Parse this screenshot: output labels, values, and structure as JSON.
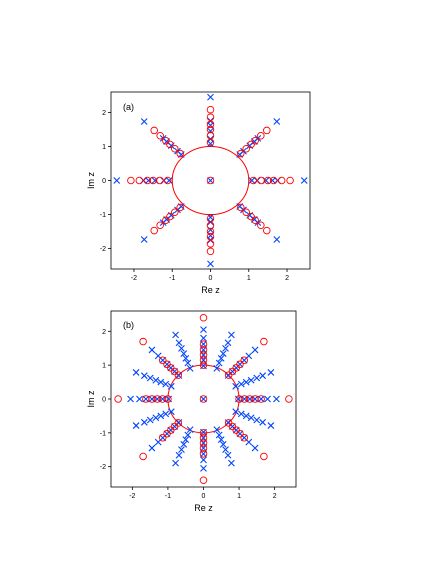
{
  "chart_data": [
    {
      "type": "scatter",
      "panel_label": "(a)",
      "xlabel": "Re z",
      "ylabel": "Im z",
      "xlim": [
        -2.6,
        2.6
      ],
      "ylim": [
        -2.6,
        2.6
      ],
      "xticks": [
        -2,
        -1,
        0,
        1,
        2
      ],
      "yticks": [
        -2,
        -1,
        0,
        1,
        2
      ],
      "grid": false,
      "circle": {
        "center": [
          0,
          0
        ],
        "radius": 1.0,
        "color": "#ff0000"
      },
      "series": [
        {
          "marker": "x",
          "color": "#0044ff",
          "radii": [
            1.08,
            1.22,
            1.45,
            1.62,
            1.75,
            2.45
          ],
          "angles_deg": [
            0,
            45,
            90,
            135,
            180,
            225,
            270,
            315
          ],
          "extra_points": [
            [
              0,
              0
            ]
          ]
        },
        {
          "marker": "o",
          "color": "#ff0000",
          "radii": [
            1.12,
            1.32,
            1.5,
            1.65,
            1.86,
            2.08
          ],
          "angles_deg": [
            0,
            45,
            90,
            135,
            180,
            225,
            270,
            315
          ],
          "extra_points": [
            [
              0,
              0
            ]
          ]
        }
      ]
    },
    {
      "type": "scatter",
      "panel_label": "(b)",
      "xlabel": "Re z",
      "ylabel": "Im z",
      "xlim": [
        -2.6,
        2.6
      ],
      "ylim": [
        -2.6,
        2.6
      ],
      "xticks": [
        -2,
        -1,
        0,
        1,
        2
      ],
      "yticks": [
        -2,
        -1,
        0,
        1,
        2
      ],
      "grid": false,
      "circle": {
        "center": [
          0,
          0
        ],
        "radius": 1.0,
        "color": "#ff0000"
      },
      "series": [
        {
          "marker": "x",
          "color": "#0044ff",
          "radii": [
            0.98,
            1.15,
            1.3,
            1.45,
            1.62,
            1.8,
            2.05
          ],
          "angles_deg": [
            0,
            22.5,
            45,
            67.5,
            90,
            112.5,
            135,
            157.5,
            180,
            202.5,
            225,
            247.5,
            270,
            292.5,
            315,
            337.5
          ],
          "extra_points": [
            [
              0,
              0
            ]
          ]
        },
        {
          "marker": "o",
          "color": "#ff0000",
          "radii": [
            1.0,
            1.15,
            1.3,
            1.45,
            1.62,
            2.4
          ],
          "angles_deg": [
            0,
            45,
            90,
            135,
            180,
            225,
            270,
            315
          ],
          "extra_points": [
            [
              0,
              0
            ]
          ]
        }
      ]
    }
  ]
}
